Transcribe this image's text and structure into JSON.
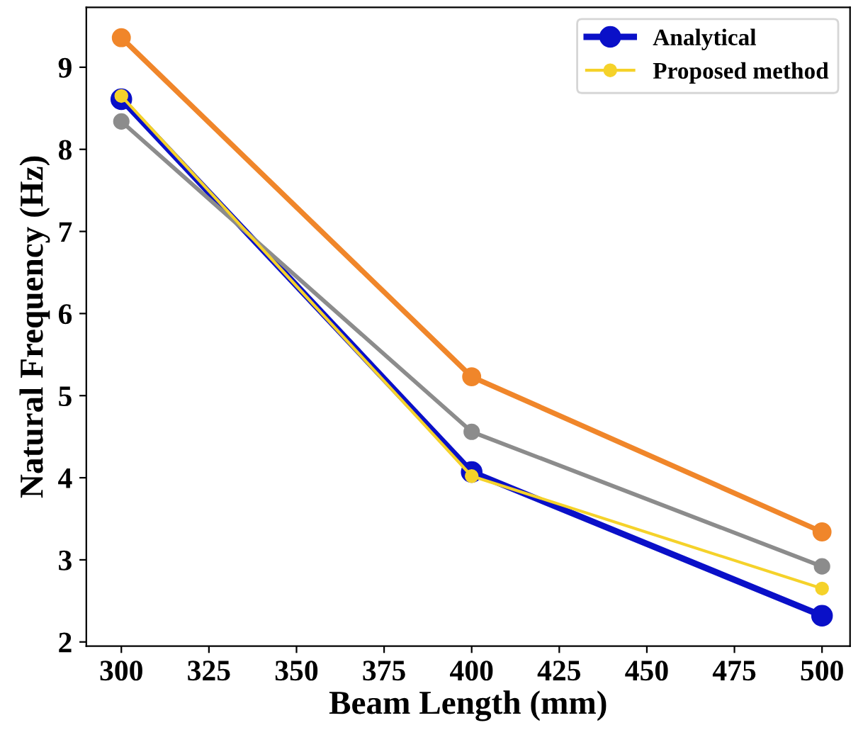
{
  "chart_data": {
    "type": "line",
    "xlabel": "Beam Length (mm)",
    "ylabel": "Natural Frequency (Hz)",
    "x": [
      300,
      400,
      500
    ],
    "series": [
      {
        "name": "Analytical",
        "color": "#0a10c8",
        "values": [
          8.61,
          4.07,
          2.32
        ]
      },
      {
        "color": "#f0862a",
        "values": [
          9.36,
          5.23,
          3.34
        ]
      },
      {
        "color": "#8c8c8c",
        "values": [
          8.34,
          4.56,
          2.92
        ]
      },
      {
        "name": "Proposed method",
        "color": "#f5d22a",
        "values": [
          8.65,
          4.02,
          2.65
        ]
      }
    ],
    "xlim": [
      290,
      508
    ],
    "xticks": [
      300,
      325,
      350,
      375,
      400,
      425,
      450,
      475,
      500
    ],
    "ylim": [
      1.95,
      9.73
    ],
    "yticks": [
      2,
      3,
      4,
      5,
      6,
      7,
      8,
      9
    ],
    "grid": false,
    "legend": "top right",
    "marker": "circle",
    "line_style": "solid"
  }
}
